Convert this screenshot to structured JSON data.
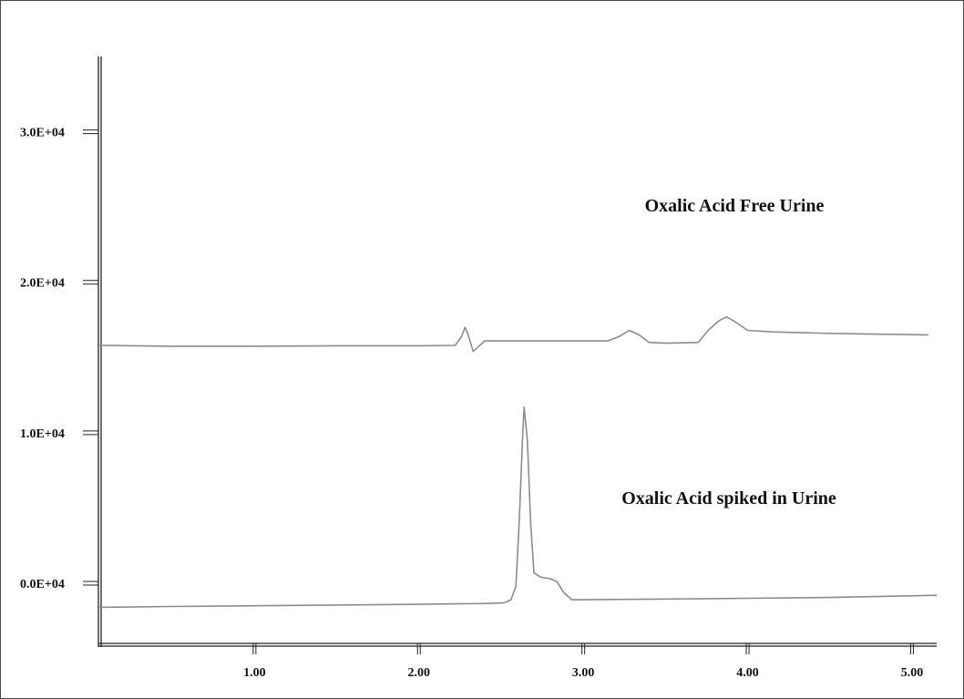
{
  "chart_data": {
    "type": "line",
    "title": "",
    "xlabel": "",
    "ylabel": "",
    "xlim": [
      0.05,
      5.15
    ],
    "ylim": [
      -4000,
      35000
    ],
    "grid": false,
    "legend": "none",
    "x_ticks": [
      "1.00",
      "2.00",
      "3.00",
      "4.00",
      "5.00"
    ],
    "y_ticks": [
      "0.0E+04",
      "1.0E+04",
      "2.0E+04",
      "3.0E+04"
    ],
    "series_color": "#8c8c8c",
    "axis_color": "#222222",
    "series": [
      {
        "name": "Oxalic Acid Free Urine",
        "points": [
          [
            0.05,
            15800
          ],
          [
            0.5,
            15750
          ],
          [
            1.0,
            15750
          ],
          [
            1.5,
            15780
          ],
          [
            2.0,
            15780
          ],
          [
            2.22,
            15800
          ],
          [
            2.26,
            16400
          ],
          [
            2.28,
            17000
          ],
          [
            2.3,
            16500
          ],
          [
            2.33,
            15400
          ],
          [
            2.36,
            15700
          ],
          [
            2.4,
            16100
          ],
          [
            2.7,
            16100
          ],
          [
            3.0,
            16100
          ],
          [
            3.15,
            16100
          ],
          [
            3.22,
            16400
          ],
          [
            3.28,
            16800
          ],
          [
            3.34,
            16500
          ],
          [
            3.4,
            16000
          ],
          [
            3.5,
            15950
          ],
          [
            3.7,
            16000
          ],
          [
            3.76,
            16800
          ],
          [
            3.82,
            17400
          ],
          [
            3.87,
            17700
          ],
          [
            3.92,
            17400
          ],
          [
            4.0,
            16800
          ],
          [
            4.15,
            16700
          ],
          [
            4.5,
            16600
          ],
          [
            4.8,
            16550
          ],
          [
            5.1,
            16500
          ]
        ]
      },
      {
        "name": "Oxalic Acid spiked in Urine",
        "points": [
          [
            0.05,
            -1600
          ],
          [
            0.5,
            -1550
          ],
          [
            1.0,
            -1500
          ],
          [
            1.5,
            -1450
          ],
          [
            2.0,
            -1400
          ],
          [
            2.4,
            -1350
          ],
          [
            2.52,
            -1300
          ],
          [
            2.56,
            -1100
          ],
          [
            2.59,
            -200
          ],
          [
            2.61,
            4000
          ],
          [
            2.63,
            9500
          ],
          [
            2.64,
            11700
          ],
          [
            2.66,
            9500
          ],
          [
            2.68,
            4000
          ],
          [
            2.7,
            700
          ],
          [
            2.74,
            400
          ],
          [
            2.8,
            300
          ],
          [
            2.84,
            100
          ],
          [
            2.88,
            -600
          ],
          [
            2.93,
            -1100
          ],
          [
            3.0,
            -1100
          ],
          [
            3.5,
            -1050
          ],
          [
            4.0,
            -1000
          ],
          [
            4.5,
            -950
          ],
          [
            5.15,
            -800
          ]
        ]
      }
    ]
  }
}
